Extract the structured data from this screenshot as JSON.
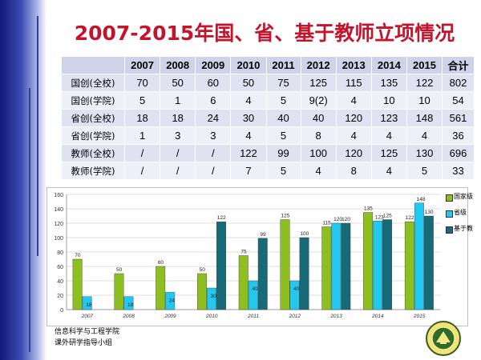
{
  "title": "2007-2015年国、省、基于教师立项情况",
  "table": {
    "headers": [
      "2007",
      "2008",
      "2009",
      "2010",
      "2011",
      "2012",
      "2013",
      "2014",
      "2015",
      "合计"
    ],
    "rows": [
      {
        "label": "国创(全校)",
        "cells": [
          "70",
          "50",
          "60",
          "50",
          "75",
          "125",
          "115",
          "135",
          "122",
          "802"
        ]
      },
      {
        "label": "国创(学院)",
        "cells": [
          "5",
          "1",
          "6",
          "4",
          "5",
          "9(2)",
          "4",
          "10",
          "10",
          "54"
        ]
      },
      {
        "label": "省创(全校)",
        "cells": [
          "18",
          "18",
          "24",
          "30",
          "40",
          "40",
          "120",
          "123",
          "148",
          "561"
        ]
      },
      {
        "label": "省创(学院)",
        "cells": [
          "1",
          "3",
          "3",
          "4",
          "5",
          "8",
          "4",
          "4",
          "4",
          "36"
        ]
      },
      {
        "label": "教师(全校)",
        "cells": [
          "/",
          "/",
          "/",
          "122",
          "99",
          "100",
          "120",
          "125",
          "130",
          "696"
        ]
      },
      {
        "label": "教师(学院)",
        "cells": [
          "/",
          "/",
          "/",
          "7",
          "5",
          "4",
          "8",
          "4",
          "5",
          "33"
        ]
      }
    ]
  },
  "chart_data": {
    "type": "bar",
    "categories": [
      "2007",
      "2008",
      "2009",
      "2010",
      "2011",
      "2012",
      "2013",
      "2014",
      "2015"
    ],
    "series": [
      {
        "name": "国家级",
        "color": "#8cbf1f",
        "values": [
          70,
          50,
          60,
          50,
          75,
          125,
          115,
          135,
          122
        ]
      },
      {
        "name": "省级",
        "color": "#22c8ef",
        "values": [
          18,
          18,
          24,
          30,
          40,
          40,
          120,
          123,
          148
        ]
      },
      {
        "name": "基于教师",
        "color": "#176b78",
        "values": [
          null,
          null,
          null,
          122,
          99,
          100,
          120,
          125,
          130
        ]
      }
    ],
    "ylim": [
      0,
      160
    ],
    "yticks": [
      0,
      20,
      40,
      60,
      80,
      100,
      120,
      140,
      160
    ],
    "grid": true,
    "legend": "right",
    "legend_labels": [
      "国家级",
      "省级",
      "基于教"
    ]
  },
  "footer": {
    "line1": "信息科学与工程学院",
    "line2": "课外研学指导小组"
  },
  "emblem": {
    "text": "东北大学"
  }
}
